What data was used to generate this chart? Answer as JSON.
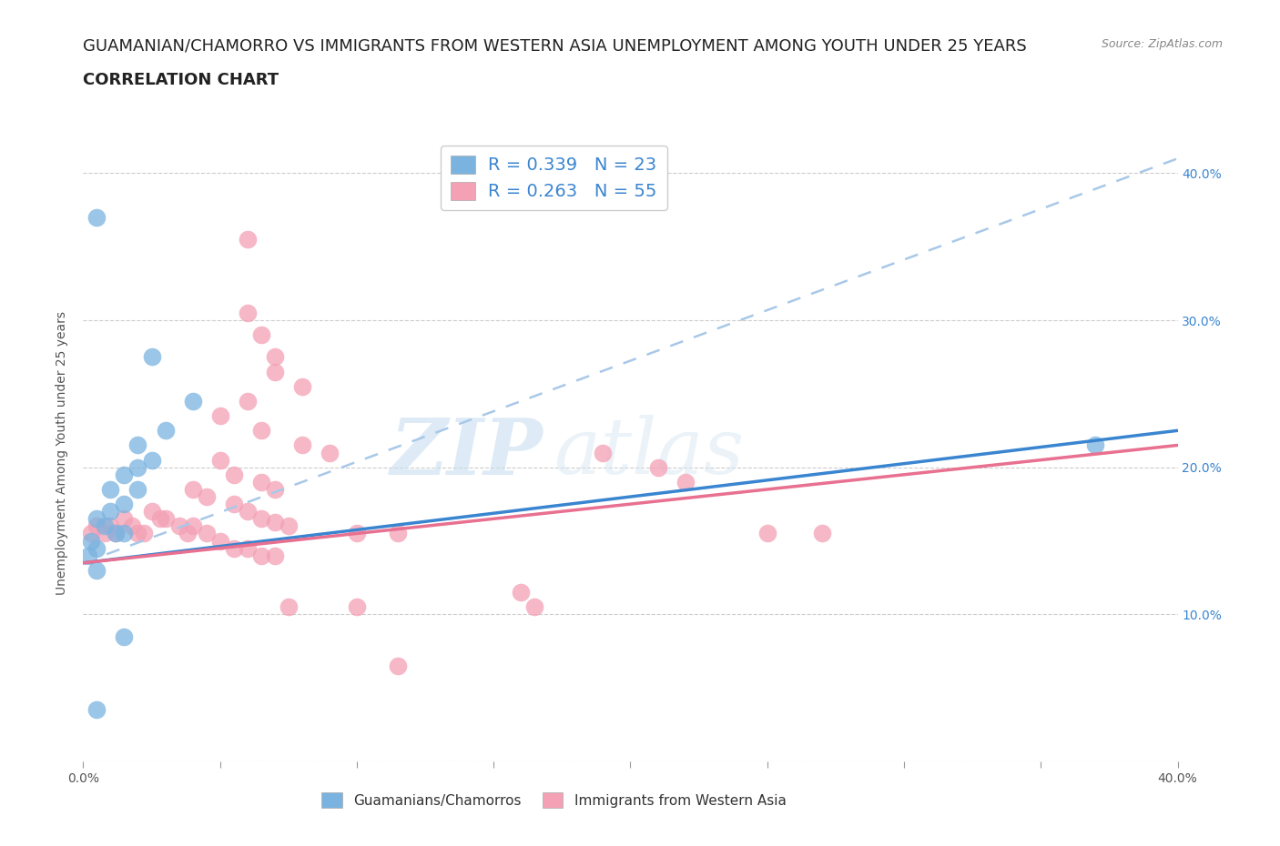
{
  "title_line1": "GUAMANIAN/CHAMORRO VS IMMIGRANTS FROM WESTERN ASIA UNEMPLOYMENT AMONG YOUTH UNDER 25 YEARS",
  "title_line2": "CORRELATION CHART",
  "source_text": "Source: ZipAtlas.com",
  "watermark": "ZIPatlas",
  "ylabel": "Unemployment Among Youth under 25 years",
  "xlim": [
    0.0,
    0.4
  ],
  "ylim": [
    0.0,
    0.42
  ],
  "grid_color": "#cccccc",
  "background_color": "#ffffff",
  "blue_color": "#7ab3e0",
  "pink_color": "#f4a0b5",
  "legend_R_blue": "0.339",
  "legend_N_blue": "23",
  "legend_R_pink": "0.263",
  "legend_N_pink": "55",
  "blue_scatter": [
    [
      0.005,
      0.37
    ],
    [
      0.025,
      0.275
    ],
    [
      0.04,
      0.245
    ],
    [
      0.03,
      0.225
    ],
    [
      0.02,
      0.215
    ],
    [
      0.025,
      0.205
    ],
    [
      0.02,
      0.2
    ],
    [
      0.015,
      0.195
    ],
    [
      0.02,
      0.185
    ],
    [
      0.01,
      0.185
    ],
    [
      0.015,
      0.175
    ],
    [
      0.01,
      0.17
    ],
    [
      0.005,
      0.165
    ],
    [
      0.008,
      0.16
    ],
    [
      0.012,
      0.155
    ],
    [
      0.015,
      0.155
    ],
    [
      0.003,
      0.15
    ],
    [
      0.005,
      0.145
    ],
    [
      0.002,
      0.14
    ],
    [
      0.005,
      0.13
    ],
    [
      0.015,
      0.085
    ],
    [
      0.37,
      0.215
    ],
    [
      0.005,
      0.035
    ]
  ],
  "pink_scatter": [
    [
      0.06,
      0.355
    ],
    [
      0.06,
      0.305
    ],
    [
      0.065,
      0.29
    ],
    [
      0.07,
      0.275
    ],
    [
      0.07,
      0.265
    ],
    [
      0.08,
      0.255
    ],
    [
      0.06,
      0.245
    ],
    [
      0.05,
      0.235
    ],
    [
      0.065,
      0.225
    ],
    [
      0.08,
      0.215
    ],
    [
      0.09,
      0.21
    ],
    [
      0.05,
      0.205
    ],
    [
      0.055,
      0.195
    ],
    [
      0.065,
      0.19
    ],
    [
      0.07,
      0.185
    ],
    [
      0.04,
      0.185
    ],
    [
      0.045,
      0.18
    ],
    [
      0.055,
      0.175
    ],
    [
      0.06,
      0.17
    ],
    [
      0.065,
      0.165
    ],
    [
      0.07,
      0.163
    ],
    [
      0.075,
      0.16
    ],
    [
      0.04,
      0.16
    ],
    [
      0.045,
      0.155
    ],
    [
      0.05,
      0.15
    ],
    [
      0.055,
      0.145
    ],
    [
      0.06,
      0.145
    ],
    [
      0.065,
      0.14
    ],
    [
      0.07,
      0.14
    ],
    [
      0.03,
      0.165
    ],
    [
      0.035,
      0.16
    ],
    [
      0.038,
      0.155
    ],
    [
      0.025,
      0.17
    ],
    [
      0.028,
      0.165
    ],
    [
      0.015,
      0.165
    ],
    [
      0.018,
      0.16
    ],
    [
      0.02,
      0.155
    ],
    [
      0.022,
      0.155
    ],
    [
      0.01,
      0.16
    ],
    [
      0.012,
      0.155
    ],
    [
      0.005,
      0.16
    ],
    [
      0.008,
      0.155
    ],
    [
      0.003,
      0.155
    ],
    [
      0.19,
      0.21
    ],
    [
      0.21,
      0.2
    ],
    [
      0.22,
      0.19
    ],
    [
      0.25,
      0.155
    ],
    [
      0.27,
      0.155
    ],
    [
      0.16,
      0.115
    ],
    [
      0.165,
      0.105
    ],
    [
      0.1,
      0.155
    ],
    [
      0.1,
      0.105
    ],
    [
      0.115,
      0.155
    ],
    [
      0.075,
      0.105
    ],
    [
      0.115,
      0.065
    ]
  ],
  "blue_line": [
    0.0,
    0.135,
    0.4,
    0.225
  ],
  "blue_dash": [
    0.0,
    0.135,
    0.4,
    0.41
  ],
  "pink_line": [
    0.0,
    0.135,
    0.4,
    0.215
  ],
  "legend_label_blue": "Guamanians/Chamorros",
  "legend_label_pink": "Immigrants from Western Asia",
  "title_fontsize": 13,
  "axis_label_fontsize": 10,
  "tick_fontsize": 10,
  "legend_fontsize": 13
}
